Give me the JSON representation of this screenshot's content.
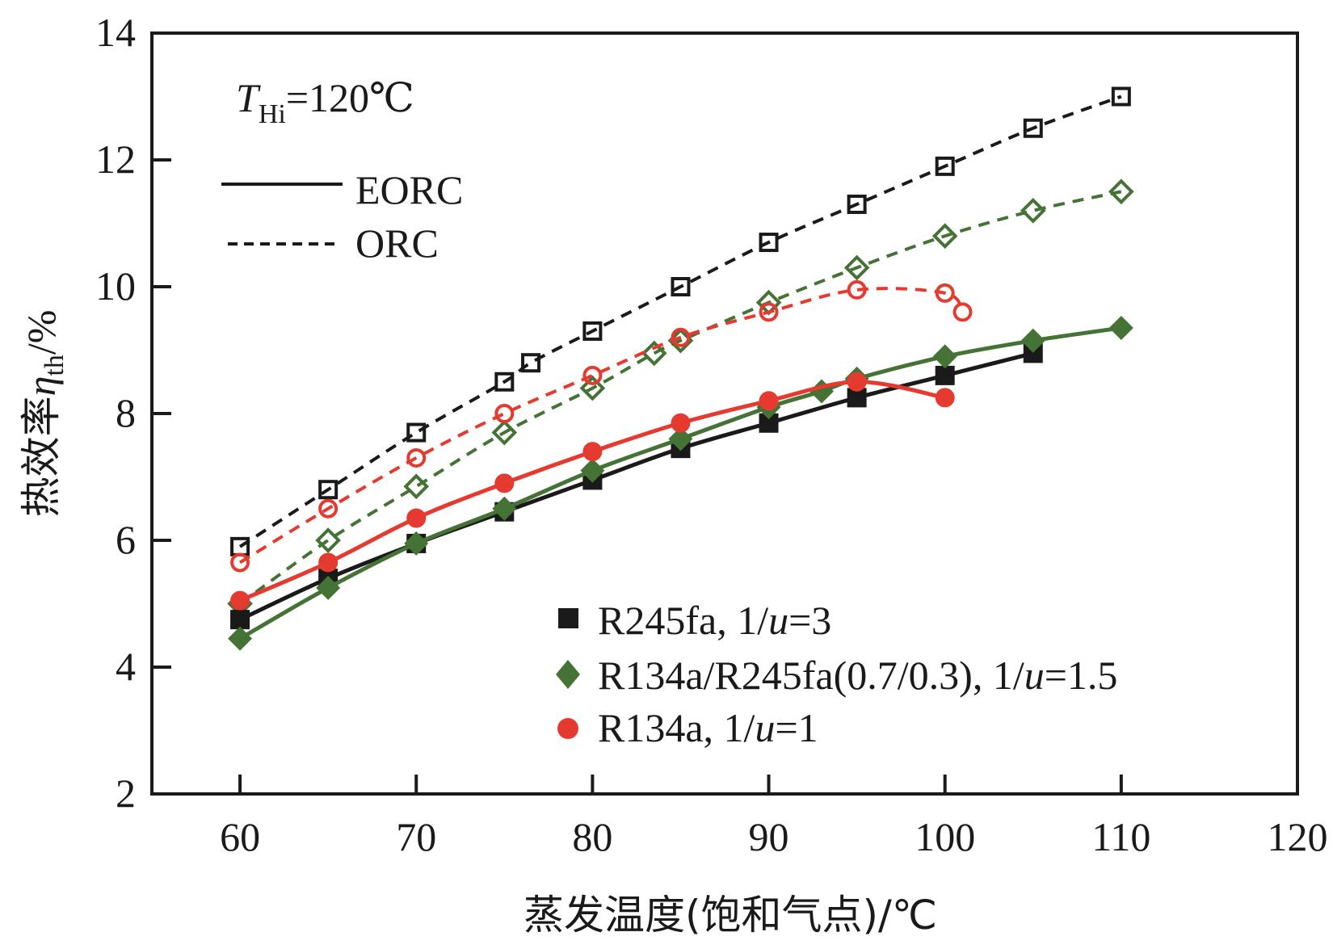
{
  "chart_data": {
    "type": "line",
    "title": "",
    "xlabel": "蒸发温度(饱和气点)/℃",
    "ylabel_prefix": "热效率",
    "ylabel_symbol": "η",
    "ylabel_sub": "th",
    "ylabel_suffix": "/%",
    "xlim": [
      55,
      120
    ],
    "ylim": [
      2,
      14
    ],
    "xticks": [
      60,
      70,
      80,
      90,
      100,
      110,
      120
    ],
    "yticks": [
      2,
      4,
      6,
      8,
      10,
      12,
      14
    ],
    "grid": false,
    "annotation": {
      "symbol": "T",
      "sub": "Hi",
      "text": "=120℃"
    },
    "line_legend": [
      {
        "label": "EORC",
        "style": "solid"
      },
      {
        "label": "ORC",
        "style": "dashed"
      }
    ],
    "marker_legend_position": "bottom-right",
    "marker_legend": [
      {
        "label_a": "R245fa, 1/",
        "label_u": "u",
        "label_b": "=3",
        "marker": "square",
        "color": "#1a1a1a"
      },
      {
        "label_a": "R134a/R245fa(0.7/0.3), 1/",
        "label_u": "u",
        "label_b": "=1.5",
        "marker": "diamond",
        "color": "#457235"
      },
      {
        "label_a": "R134a, 1/",
        "label_u": "u",
        "label_b": "=1",
        "marker": "circle",
        "color": "#e53a30"
      }
    ],
    "series": [
      {
        "name": "R245fa ORC",
        "cycle": "ORC",
        "marker": "square",
        "filled": false,
        "color": "#1a1a1a",
        "x": [
          60,
          65,
          70,
          75,
          76.5,
          80,
          85,
          90,
          95,
          100,
          105,
          110
        ],
        "y": [
          5.9,
          6.8,
          7.7,
          8.5,
          8.8,
          9.3,
          10.0,
          10.7,
          11.3,
          11.9,
          12.5,
          13.0
        ]
      },
      {
        "name": "R134a/R245fa(0.7/0.3) ORC",
        "cycle": "ORC",
        "marker": "diamond",
        "filled": false,
        "color": "#457235",
        "x": [
          60,
          65,
          70,
          75,
          80,
          83.5,
          85,
          90,
          95,
          100,
          105,
          110
        ],
        "y": [
          5.0,
          6.0,
          6.85,
          7.7,
          8.4,
          8.95,
          9.15,
          9.75,
          10.3,
          10.8,
          11.2,
          11.5
        ]
      },
      {
        "name": "R134a ORC",
        "cycle": "ORC",
        "marker": "circle",
        "filled": false,
        "color": "#e53a30",
        "x": [
          60,
          65,
          70,
          75,
          80,
          85,
          90,
          95,
          100,
          101
        ],
        "y": [
          5.65,
          6.5,
          7.3,
          8.0,
          8.6,
          9.2,
          9.6,
          9.95,
          9.9,
          9.6
        ]
      },
      {
        "name": "R245fa EORC",
        "cycle": "EORC",
        "marker": "square",
        "filled": true,
        "color": "#1a1a1a",
        "x": [
          60,
          65,
          70,
          75,
          80,
          85,
          90,
          95,
          100,
          105
        ],
        "y": [
          4.75,
          5.4,
          5.95,
          6.45,
          6.95,
          7.45,
          7.85,
          8.25,
          8.6,
          8.95
        ]
      },
      {
        "name": "R134a/R245fa(0.7/0.3) EORC",
        "cycle": "EORC",
        "marker": "diamond",
        "filled": true,
        "color": "#457235",
        "x": [
          60,
          65,
          70,
          75,
          80,
          85,
          90,
          93,
          95,
          100,
          105,
          110
        ],
        "y": [
          4.45,
          5.25,
          5.95,
          6.5,
          7.1,
          7.6,
          8.1,
          8.35,
          8.55,
          8.9,
          9.15,
          9.35
        ]
      },
      {
        "name": "R134a EORC",
        "cycle": "EORC",
        "marker": "circle",
        "filled": true,
        "color": "#e53a30",
        "x": [
          60,
          65,
          70,
          75,
          80,
          85,
          90,
          95,
          100
        ],
        "y": [
          5.05,
          5.65,
          6.35,
          6.9,
          7.4,
          7.85,
          8.2,
          8.5,
          8.25
        ]
      }
    ]
  }
}
